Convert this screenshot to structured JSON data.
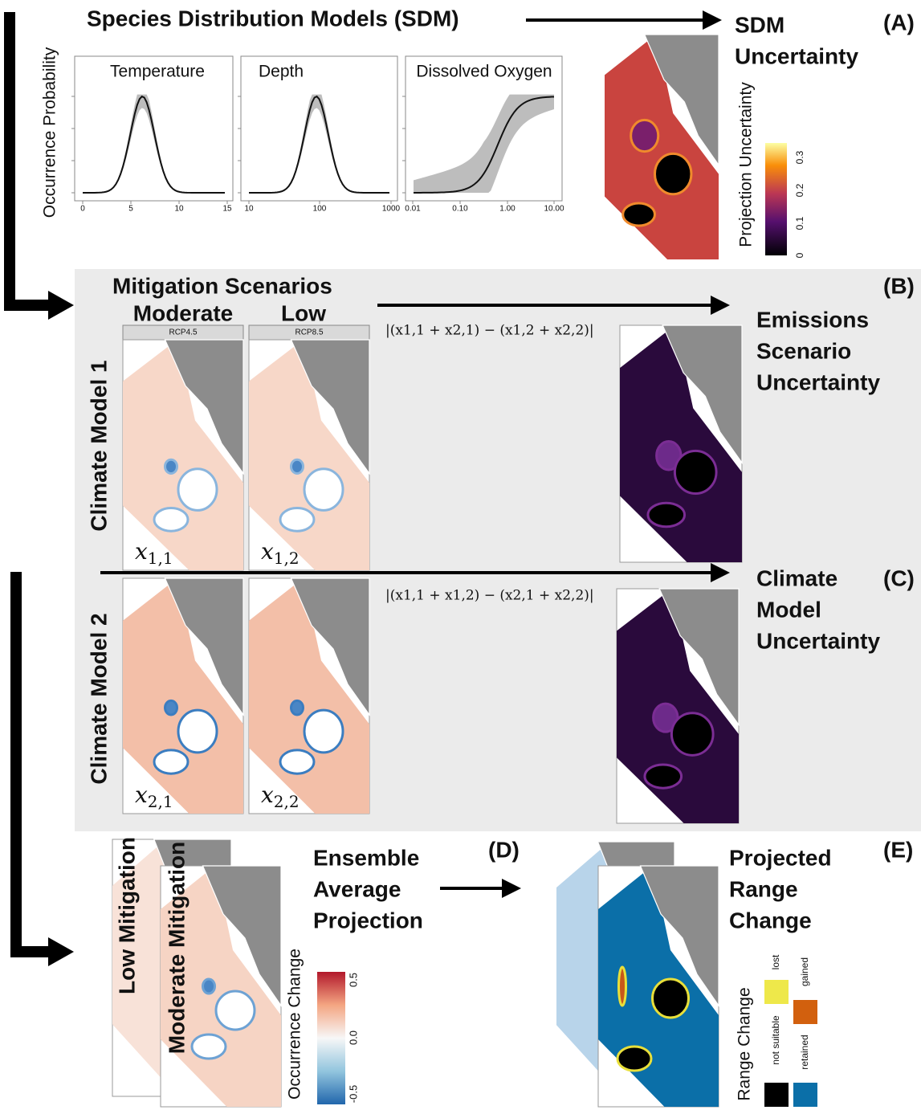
{
  "header": {
    "title": "Species Distribution Models (SDM)",
    "result_lines": [
      "SDM",
      "Uncertainty"
    ],
    "panel_label": "(A)"
  },
  "sdm_panels": {
    "y_label": "Occurrence Probability",
    "panels": [
      {
        "title": "Temperature",
        "ticks": [
          "0",
          "5",
          "10",
          "15"
        ]
      },
      {
        "title": "Depth",
        "ticks": [
          "10",
          "100",
          "1000"
        ]
      },
      {
        "title": "Dissolved Oxygen",
        "ticks": [
          "0.01",
          "0.10",
          "1.00",
          "10.00"
        ]
      }
    ]
  },
  "sdm_uncertainty_legend": {
    "title": "Projection Uncertainty",
    "ticks": [
      "0",
      "0.1",
      "0.2",
      "0.3"
    ]
  },
  "mitigation": {
    "title": "Mitigation Scenarios",
    "columns": [
      "Moderate",
      "Low"
    ],
    "strip_labels": [
      "RCP4.5",
      "RCP8.5"
    ],
    "rows": [
      "Climate Model 1",
      "Climate Model 2"
    ],
    "cell_labels": [
      [
        {
          "base": "x",
          "sub": "1,1"
        },
        {
          "base": "x",
          "sub": "1,2"
        }
      ],
      [
        {
          "base": "x",
          "sub": "2,1"
        },
        {
          "base": "x",
          "sub": "2,2"
        }
      ]
    ]
  },
  "emissions": {
    "formula": "|(x1,1 + x2,1) − (x1,2 + x2,2)|",
    "lines": [
      "Emissions",
      "Scenario",
      "Uncertainty"
    ],
    "panel_label": "(B)"
  },
  "climate": {
    "formula": "|(x1,1 + x1,2) − (x2,1 + x2,2)|",
    "lines": [
      "Climate",
      "Model",
      "Uncertainty"
    ],
    "panel_label": "(C)"
  },
  "ensemble": {
    "map_labels": [
      "Low Mitigation",
      "Moderate Mitigation"
    ],
    "legend_title": "Occurrence Change",
    "legend_ticks": [
      "-0.5",
      "0.0",
      "0.5"
    ],
    "lines": [
      "Ensemble",
      "Average",
      "Projection"
    ],
    "panel_label": "(D)"
  },
  "range": {
    "lines": [
      "Projected",
      "Range",
      "Change"
    ],
    "panel_label": "(E)",
    "legend_title": "Range Change",
    "categories": [
      "lost",
      "gained",
      "not suitable",
      "retained"
    ]
  }
}
